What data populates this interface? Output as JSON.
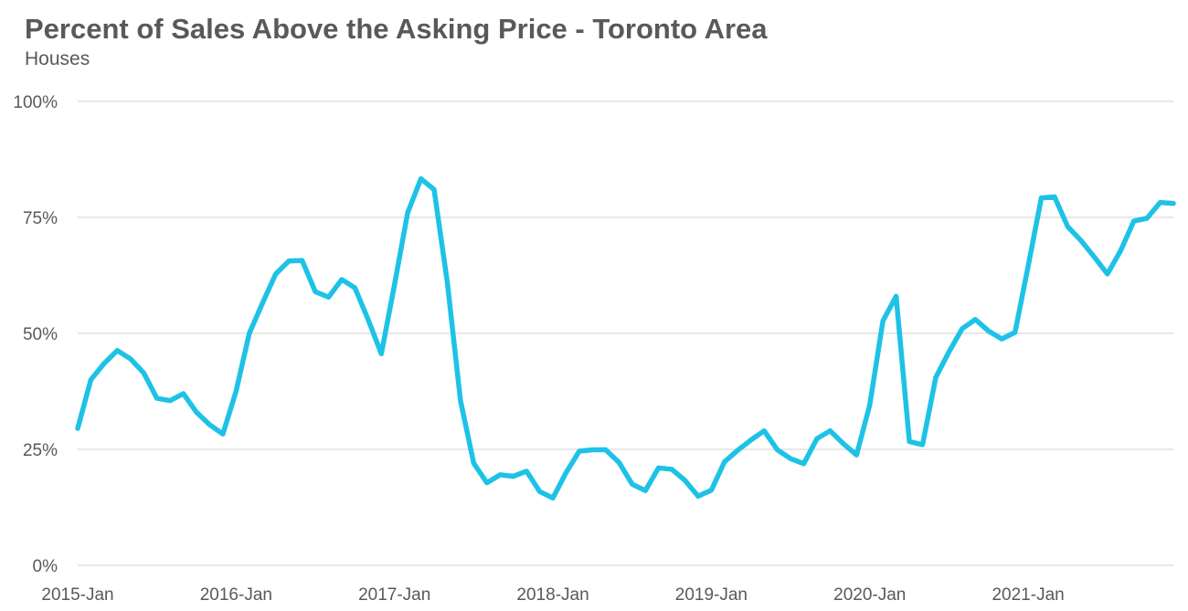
{
  "chart_data": {
    "type": "line",
    "title": "Percent of Sales Above the Asking Price - Toronto Area",
    "subtitle": "Houses",
    "xlabel": "",
    "ylabel": "",
    "ylim": [
      0,
      100
    ],
    "y_ticks": [
      "0%",
      "25%",
      "50%",
      "75%",
      "100%"
    ],
    "y_tick_values": [
      0,
      25,
      50,
      75,
      100
    ],
    "x_ticks": [
      "2015-Jan",
      "2016-Jan",
      "2017-Jan",
      "2018-Jan",
      "2019-Jan",
      "2020-Jan",
      "2021-Jan"
    ],
    "x_tick_months": [
      "2015-01",
      "2016-01",
      "2017-01",
      "2018-01",
      "2019-01",
      "2020-01",
      "2021-01"
    ],
    "grid": true,
    "legend": "none",
    "series": [
      {
        "color": "#1ec2e6",
        "x": [
          "2015-01",
          "2015-02",
          "2015-03",
          "2015-04",
          "2015-05",
          "2015-06",
          "2015-07",
          "2015-08",
          "2015-09",
          "2015-10",
          "2015-11",
          "2015-12",
          "2016-01",
          "2016-02",
          "2016-03",
          "2016-04",
          "2016-05",
          "2016-06",
          "2016-07",
          "2016-08",
          "2016-09",
          "2016-10",
          "2016-11",
          "2016-12",
          "2017-01",
          "2017-02",
          "2017-03",
          "2017-04",
          "2017-05",
          "2017-06",
          "2017-07",
          "2017-08",
          "2017-09",
          "2017-10",
          "2017-11",
          "2017-12",
          "2018-01",
          "2018-02",
          "2018-03",
          "2018-04",
          "2018-05",
          "2018-06",
          "2018-07",
          "2018-08",
          "2018-09",
          "2018-10",
          "2018-11",
          "2018-12",
          "2019-01",
          "2019-02",
          "2019-03",
          "2019-04",
          "2019-05",
          "2019-06",
          "2019-07",
          "2019-08",
          "2019-09",
          "2019-10",
          "2019-11",
          "2019-12",
          "2020-01",
          "2020-02",
          "2020-03",
          "2020-04",
          "2020-05",
          "2020-06",
          "2020-07",
          "2020-08",
          "2020-09",
          "2020-10",
          "2020-11",
          "2020-12",
          "2021-01",
          "2021-02",
          "2021-03",
          "2021-04",
          "2021-05",
          "2021-06",
          "2021-07",
          "2021-08",
          "2021-09",
          "2021-10",
          "2021-11",
          "2021-12"
        ],
        "values": [
          29.5,
          40,
          43.5,
          46.3,
          44.5,
          41.5,
          36,
          35.5,
          37,
          33,
          30.3,
          28.3,
          37.5,
          50,
          56.5,
          62.8,
          65.6,
          65.7,
          59,
          57.8,
          61.6,
          59.8,
          53,
          45.6,
          60.5,
          76,
          83.3,
          81,
          61,
          35.5,
          22,
          17.8,
          19.5,
          19.2,
          20.3,
          15.9,
          14.5,
          20,
          24.6,
          24.9,
          24.9,
          22.2,
          17.5,
          16.1,
          21,
          20.7,
          18.3,
          14.9,
          16.2,
          22.3,
          24.8,
          27,
          29,
          24.9,
          23,
          21.9,
          27.3,
          29,
          26.2,
          23.8,
          34.5,
          52.7,
          58,
          26.7,
          26,
          40.5,
          46,
          51,
          53,
          50.5,
          48.8,
          50.2,
          64.5,
          79.2,
          79.4,
          73,
          70,
          66.5,
          62.8,
          67.8,
          74.2,
          74.8,
          78.2,
          78
        ]
      }
    ]
  }
}
